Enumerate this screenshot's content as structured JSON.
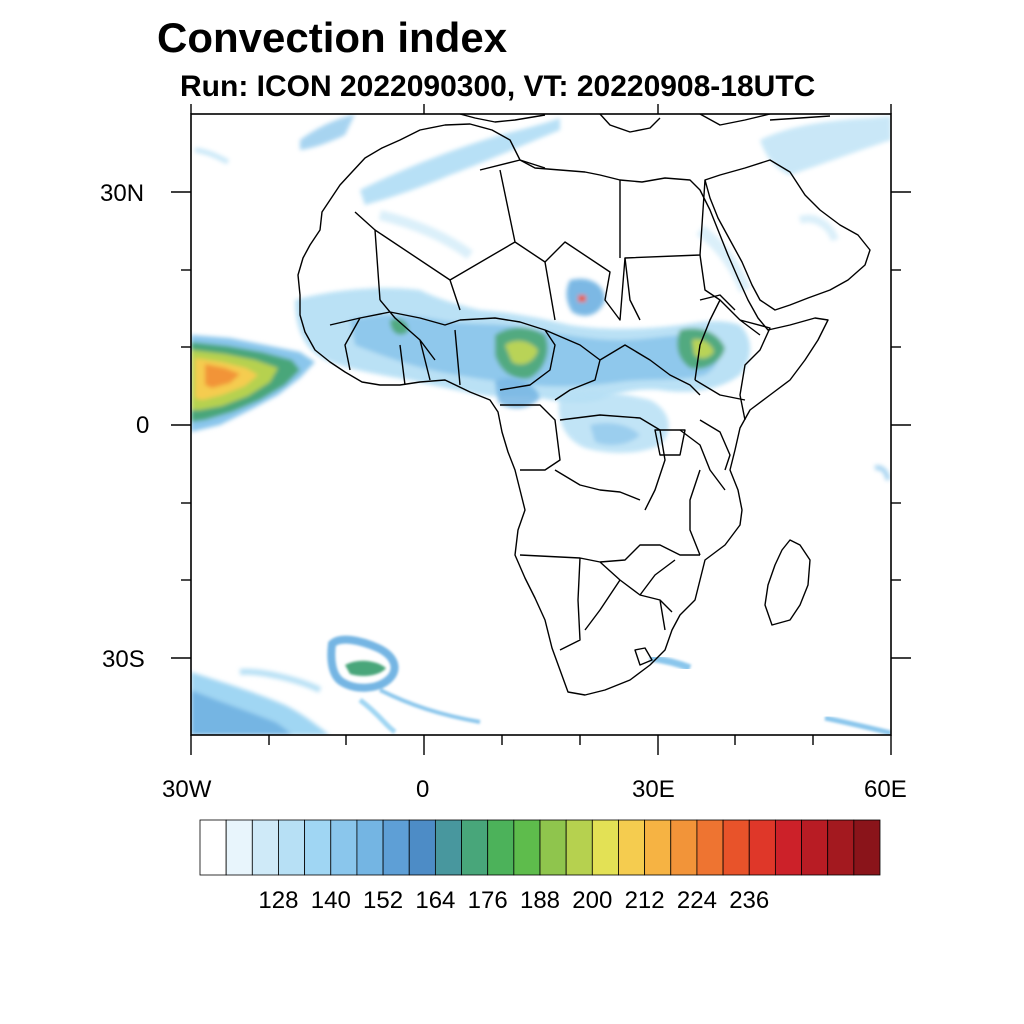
{
  "title": "Convection index",
  "subtitle": "Run: ICON 2022090300,  VT: 20220908-18UTC",
  "map": {
    "projection": "lat-lon",
    "lon_range": [
      -30,
      60
    ],
    "lat_range": [
      -40,
      40
    ],
    "lat_ticks": [
      {
        "value": 30,
        "label": "30N"
      },
      {
        "value": 0,
        "label": "0"
      },
      {
        "value": -30,
        "label": "30S"
      }
    ],
    "lon_ticks": [
      {
        "value": -30,
        "label": "30W"
      },
      {
        "value": 0,
        "label": "0"
      },
      {
        "value": 30,
        "label": "30E"
      },
      {
        "value": 60,
        "label": "60E"
      }
    ]
  },
  "colorbar": {
    "colors": [
      "#ffffff",
      "#e8f5fc",
      "#cfeaf8",
      "#b7e0f5",
      "#a0d6f3",
      "#8ac6ec",
      "#74b5e3",
      "#5e9fd6",
      "#4d8cc6",
      "#48979e",
      "#48a67a",
      "#4cb25a",
      "#5ebc4c",
      "#8fc54d",
      "#b6d14f",
      "#e3e155",
      "#f5cc4f",
      "#f6b343",
      "#f29439",
      "#ee7431",
      "#e8532a",
      "#df3729",
      "#cc2129",
      "#b81c24",
      "#a3191f",
      "#8a141a"
    ],
    "labels": [
      "128",
      "140",
      "152",
      "164",
      "176",
      "188",
      "200",
      "212",
      "224",
      "236"
    ]
  }
}
